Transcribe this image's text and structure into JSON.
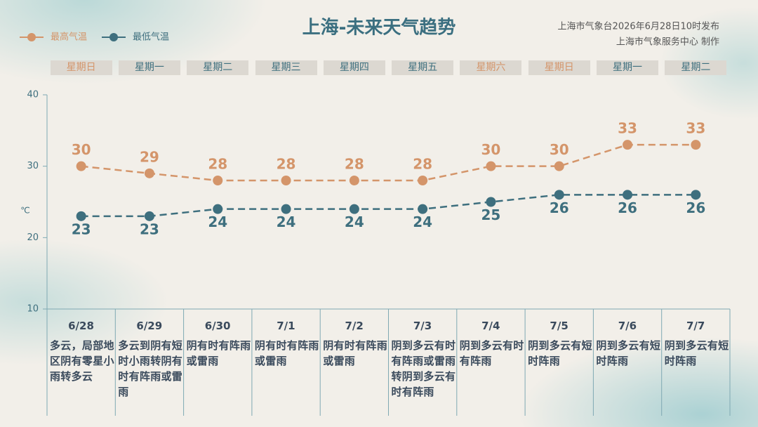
{
  "chart_data": {
    "type": "line",
    "title": "上海-未来天气趋势",
    "source": "上海市气象台2026年6月28日10时发布",
    "producer": "上海市气象服务中心  制作",
    "y_label": "℃",
    "categories": [
      "6/28",
      "6/29",
      "6/30",
      "7/1",
      "7/2",
      "7/3",
      "7/4",
      "7/5",
      "7/6",
      "7/7"
    ],
    "weekdays": [
      "星期日",
      "星期一",
      "星期二",
      "星期三",
      "星期四",
      "星期五",
      "星期六",
      "星期日",
      "星期一",
      "星期二"
    ],
    "weekday_colors": [
      "#d4956a",
      "#3e6f7e",
      "#3e6f7e",
      "#3e6f7e",
      "#3e6f7e",
      "#3e6f7e",
      "#d4956a",
      "#d4956a",
      "#3e6f7e",
      "#3e6f7e"
    ],
    "descriptions": [
      "多云，局部地区阴有零星小雨转多云",
      "多云到阴有短时小雨转阴有时有阵雨或雷雨",
      "阴有时有阵雨或雷雨",
      "阴有时有阵雨或雷雨",
      "阴有时有阵雨或雷雨",
      "阴到多云有时有阵雨或雷雨转阴到多云有时有阵雨",
      "阴到多云有时有阵雨",
      "阴到多云有短时阵雨",
      "阴到多云有短时阵雨",
      "阴到多云有短时阵雨"
    ],
    "series": [
      {
        "name": "最高气温",
        "color": "#d4956a",
        "values": [
          30,
          29,
          28,
          28,
          28,
          28,
          30,
          30,
          33,
          33
        ]
      },
      {
        "name": "最低气温",
        "color": "#3e6f7e",
        "values": [
          23,
          23,
          24,
          24,
          24,
          24,
          25,
          26,
          26,
          26
        ]
      }
    ],
    "ylim": [
      10,
      40
    ],
    "yticks": [
      10,
      20,
      30,
      40
    ]
  }
}
